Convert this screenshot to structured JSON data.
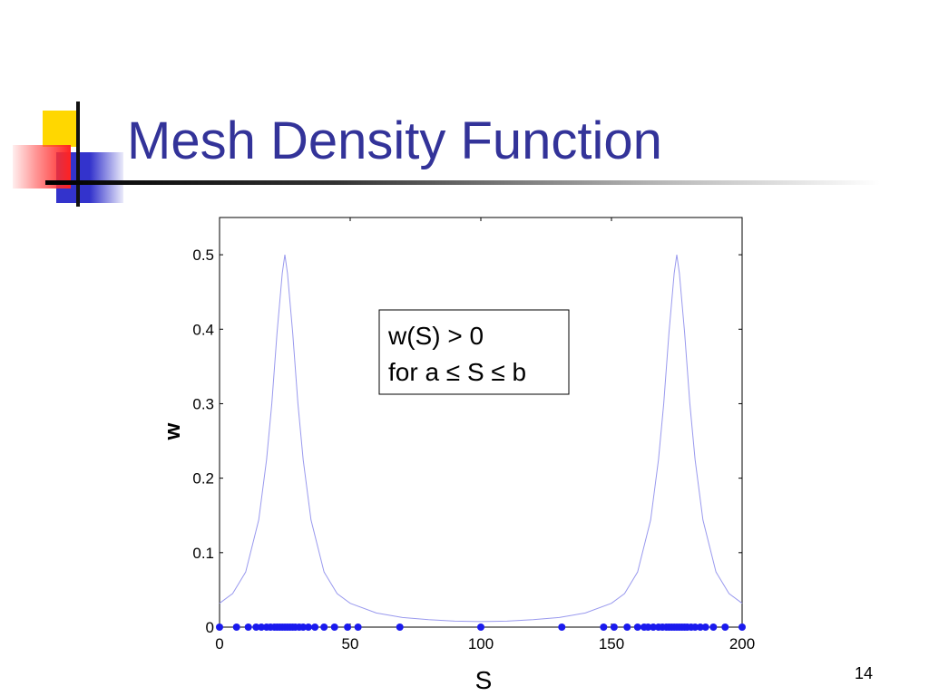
{
  "slide": {
    "title": "Mesh Density Function",
    "page_number": "14",
    "accent_colors": {
      "title": "#333399",
      "yellow": "#FFD700",
      "blue": "#3333CC",
      "red": "#FF3333"
    }
  },
  "chart_data": {
    "type": "line",
    "xlabel": "S",
    "ylabel": "w",
    "xlim": [
      0,
      200
    ],
    "ylim": [
      0,
      0.55
    ],
    "xticks": [
      0,
      50,
      100,
      150,
      200
    ],
    "xtick_labels": [
      "0",
      "50",
      "100",
      "150",
      "200"
    ],
    "yticks": [
      0,
      0.1,
      0.2,
      0.3,
      0.4,
      0.5
    ],
    "ytick_labels": [
      "0",
      "0.1",
      "0.2",
      "0.3",
      "0.4",
      "0.5"
    ],
    "grid": false,
    "series": [
      {
        "type": "line",
        "color": "#9999ee",
        "x": [
          0,
          5,
          10,
          15,
          18,
          20,
          22,
          24,
          25,
          26,
          28,
          30,
          32,
          35,
          40,
          45,
          50,
          60,
          70,
          80,
          90,
          100,
          110,
          120,
          130,
          140,
          150,
          155,
          160,
          165,
          168,
          170,
          172,
          174,
          175,
          176,
          178,
          180,
          182,
          185,
          190,
          195,
          200
        ],
        "y": [
          0.032,
          0.045,
          0.074,
          0.144,
          0.225,
          0.3,
          0.395,
          0.475,
          0.5,
          0.475,
          0.395,
          0.3,
          0.225,
          0.144,
          0.074,
          0.045,
          0.032,
          0.019,
          0.013,
          0.01,
          0.008,
          0.0075,
          0.008,
          0.01,
          0.013,
          0.019,
          0.032,
          0.045,
          0.074,
          0.144,
          0.225,
          0.3,
          0.395,
          0.475,
          0.5,
          0.475,
          0.395,
          0.3,
          0.225,
          0.144,
          0.074,
          0.045,
          0.032
        ]
      },
      {
        "type": "scatter",
        "color": "#1a1aee",
        "x": [
          0,
          6.5,
          11,
          14,
          16,
          18,
          19.5,
          21,
          22,
          23,
          24,
          25,
          26,
          27,
          28,
          29,
          30.5,
          32,
          34,
          36.5,
          40,
          44,
          49,
          53,
          69,
          100,
          131,
          147,
          151,
          156,
          160,
          162.5,
          164,
          166,
          168,
          169.5,
          171,
          172,
          173,
          174,
          175,
          176,
          177,
          178,
          179,
          180.5,
          182,
          184,
          186,
          189,
          193.5,
          200
        ],
        "y": [
          0,
          0,
          0,
          0,
          0,
          0,
          0,
          0,
          0,
          0,
          0,
          0,
          0,
          0,
          0,
          0,
          0,
          0,
          0,
          0,
          0,
          0,
          0,
          0,
          0,
          0,
          0,
          0,
          0,
          0,
          0,
          0,
          0,
          0,
          0,
          0,
          0,
          0,
          0,
          0,
          0,
          0,
          0,
          0,
          0,
          0,
          0,
          0,
          0,
          0,
          0,
          0
        ]
      }
    ],
    "annotation": {
      "line1": "w(S) > 0",
      "line2": "for a ≤ S ≤ b"
    }
  }
}
